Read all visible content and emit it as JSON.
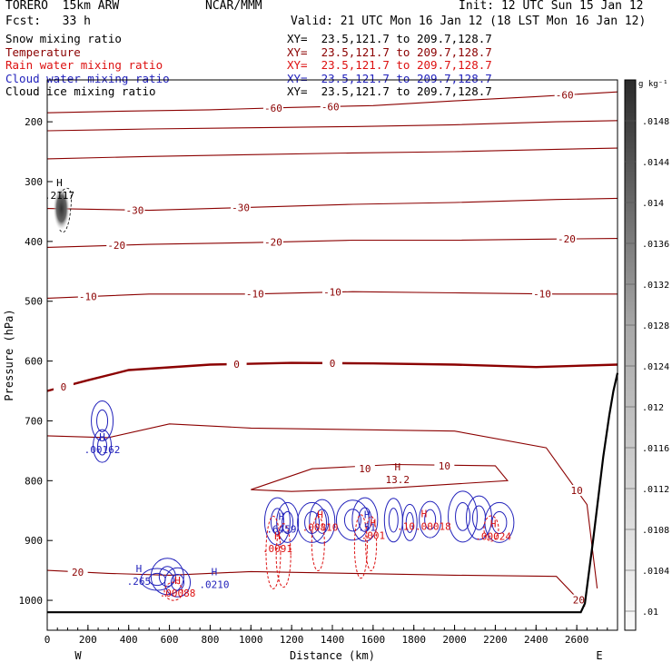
{
  "header": {
    "model": "TORERO  15km ARW",
    "org": "NCAR/MMM",
    "init": "Init: 12 UTC Sun 15 Jan 12",
    "fcst": "Fcst:   33 h",
    "valid": "Valid: 21 UTC Mon 16 Jan 12 (18 LST Mon 16 Jan 12)"
  },
  "legend": [
    {
      "label": "Snow mixing ratio",
      "xy": "XY=  23.5,121.7 to 209.7,128.7",
      "color": "#000000"
    },
    {
      "label": "Temperature",
      "xy": "XY=  23.5,121.7 to 209.7,128.7",
      "color": "#8b0000"
    },
    {
      "label": "Rain water mixing ratio",
      "xy": "XY=  23.5,121.7 to 209.7,128.7",
      "color": "#dd1111"
    },
    {
      "label": "Cloud water mixing ratio",
      "xy": "XY=  23.5,121.7 to 209.7,128.7",
      "color": "#2222bb"
    },
    {
      "label": "Cloud ice mixing ratio",
      "xy": "XY=  23.5,121.7 to 209.7,128.7",
      "color": "#000000"
    }
  ],
  "colors": {
    "temperature": "#8b0000",
    "rain": "#dd1111",
    "cloud_water": "#2222bb",
    "terrain": "#000000"
  },
  "chart_data": {
    "type": "line",
    "xlabel": "Distance (km)",
    "ylabel": "Pressure (hPa)",
    "xlim": [
      0,
      2800
    ],
    "ylim": [
      1050,
      130
    ],
    "x_ticks": [
      "0",
      "200",
      "400",
      "600",
      "800",
      "1000",
      "1200",
      "1400",
      "1600",
      "1800",
      "2000",
      "2200",
      "2400",
      "2600"
    ],
    "y_ticks": [
      "200",
      "300",
      "400",
      "500",
      "600",
      "700",
      "800",
      "900",
      "1000"
    ],
    "endpoint_labels": [
      "W",
      "E"
    ],
    "colorbar": {
      "unit": "g kg⁻¹",
      "ticks": [
        ".0148",
        ".0144",
        ".014",
        ".0136",
        ".0132",
        ".0128",
        ".0124",
        ".012",
        ".0116",
        ".0112",
        ".0108",
        ".0104",
        ".01"
      ]
    },
    "temperature_isotherms": [
      {
        "value": -60,
        "points": [
          [
            0,
            185
          ],
          [
            400,
            182
          ],
          [
            800,
            180
          ],
          [
            1200,
            176
          ],
          [
            1600,
            173
          ],
          [
            2000,
            165
          ],
          [
            2400,
            158
          ],
          [
            2800,
            150
          ]
        ],
        "labels": [
          "-60",
          "-60",
          "-60"
        ],
        "label_x": [
          1110,
          1390,
          2540
        ]
      },
      {
        "value": -50,
        "points": [
          [
            0,
            215
          ],
          [
            500,
            212
          ],
          [
            1000,
            210
          ],
          [
            1500,
            208
          ],
          [
            2000,
            205
          ],
          [
            2500,
            200
          ],
          [
            2800,
            198
          ]
        ],
        "labels": [],
        "label_x": []
      },
      {
        "value": -40,
        "points": [
          [
            0,
            262
          ],
          [
            500,
            258
          ],
          [
            1000,
            255
          ],
          [
            1500,
            252
          ],
          [
            2000,
            250
          ],
          [
            2500,
            246
          ],
          [
            2800,
            244
          ]
        ],
        "labels": [],
        "label_x": []
      },
      {
        "value": -30,
        "points": [
          [
            0,
            345
          ],
          [
            500,
            348
          ],
          [
            1000,
            343
          ],
          [
            1500,
            338
          ],
          [
            2000,
            335
          ],
          [
            2500,
            330
          ],
          [
            2800,
            328
          ]
        ],
        "labels": [
          "-30",
          "-30"
        ],
        "label_x": [
          430,
          950
        ]
      },
      {
        "value": -20,
        "points": [
          [
            0,
            410
          ],
          [
            500,
            405
          ],
          [
            1000,
            402
          ],
          [
            1500,
            398
          ],
          [
            2000,
            398
          ],
          [
            2500,
            396
          ],
          [
            2800,
            395
          ]
        ],
        "labels": [
          "-20",
          "-20",
          "-20"
        ],
        "label_x": [
          340,
          1110,
          2550
        ]
      },
      {
        "value": -10,
        "points": [
          [
            0,
            495
          ],
          [
            500,
            488
          ],
          [
            1000,
            488
          ],
          [
            1500,
            484
          ],
          [
            2000,
            486
          ],
          [
            2500,
            488
          ],
          [
            2800,
            488
          ]
        ],
        "labels": [
          "-10",
          "-10",
          "-10",
          "-10"
        ],
        "label_x": [
          200,
          1020,
          1400,
          2430
        ]
      },
      {
        "value": 0,
        "points": [
          [
            0,
            650
          ],
          [
            200,
            632
          ],
          [
            400,
            615
          ],
          [
            800,
            606
          ],
          [
            1200,
            603
          ],
          [
            1600,
            604
          ],
          [
            2000,
            606
          ],
          [
            2400,
            610
          ],
          [
            2800,
            606
          ]
        ],
        "labels": [
          "0",
          "0",
          "0"
        ],
        "label_x": [
          80,
          930,
          1400
        ]
      },
      {
        "value": 10,
        "points": [
          [
            1000,
            815
          ],
          [
            1300,
            780
          ],
          [
            1700,
            773
          ],
          [
            2200,
            775
          ],
          [
            2260,
            800
          ],
          [
            1700,
            812
          ],
          [
            1200,
            818
          ],
          [
            1000,
            815
          ]
        ],
        "labels": [
          "10",
          "10"
        ],
        "label_x": [
          1560,
          1950
        ],
        "closed": true
      },
      {
        "value": 10,
        "points": [
          [
            0,
            725
          ],
          [
            300,
            728
          ],
          [
            600,
            705
          ],
          [
            1000,
            712
          ],
          [
            2000,
            717
          ],
          [
            2450,
            745
          ],
          [
            2650,
            840
          ],
          [
            2700,
            980
          ]
        ],
        "labels": [
          "10"
        ],
        "label_x": [
          2600
        ],
        "open_outer": true
      },
      {
        "value": 20,
        "points": [
          [
            0,
            950
          ],
          [
            300,
            955
          ],
          [
            600,
            958
          ],
          [
            1000,
            952
          ],
          [
            1500,
            955
          ],
          [
            2000,
            958
          ],
          [
            2500,
            960
          ],
          [
            2640,
            1010
          ]
        ],
        "labels": [
          "20",
          "20"
        ],
        "label_x": [
          150,
          2610
        ]
      }
    ],
    "extrema": [
      {
        "type": "H",
        "label": "13.2",
        "x": 1720,
        "p": 795,
        "color": "#8b0000"
      },
      {
        "type": "H",
        "label": ".2117",
        "x": 60,
        "p": 320,
        "color": "#000000"
      },
      {
        "type": "H",
        "label": ".00162",
        "x": 270,
        "p": 745,
        "color": "#2222bb"
      },
      {
        "type": "H",
        "label": ".265",
        "x": 450,
        "p": 965,
        "color": "#2222bb"
      },
      {
        "type": "H",
        "label": ".00088",
        "x": 640,
        "p": 985,
        "color": "#dd1111"
      },
      {
        "type": "H",
        "label": ".0210",
        "x": 820,
        "p": 970,
        "color": "#2222bb"
      },
      {
        "type": "H",
        "label": ".6459",
        "x": 1150,
        "p": 878,
        "color": "#2222bb"
      },
      {
        "type": "H",
        "label": ".0091",
        "x": 1130,
        "p": 910,
        "color": "#dd1111"
      },
      {
        "type": "H",
        "label": ".00810",
        "x": 1340,
        "p": 875,
        "color": "#dd1111"
      },
      {
        "type": "H",
        "label": ".51",
        "x": 1570,
        "p": 875,
        "color": "#2222bb"
      },
      {
        "type": "H",
        "label": ".001",
        "x": 1600,
        "p": 888,
        "color": "#dd1111"
      },
      {
        "type": "H",
        "label": ".10.00018",
        "x": 1850,
        "p": 873,
        "color": "#dd1111"
      },
      {
        "type": "H",
        "label": ".00024",
        "x": 2190,
        "p": 890,
        "color": "#dd1111"
      }
    ],
    "terrain": {
      "points": [
        [
          0,
          1020
        ],
        [
          2620,
          1020
        ],
        [
          2640,
          1005
        ],
        [
          2680,
          900
        ],
        [
          2730,
          760
        ],
        [
          2760,
          690
        ],
        [
          2780,
          650
        ],
        [
          2800,
          620
        ]
      ]
    }
  }
}
